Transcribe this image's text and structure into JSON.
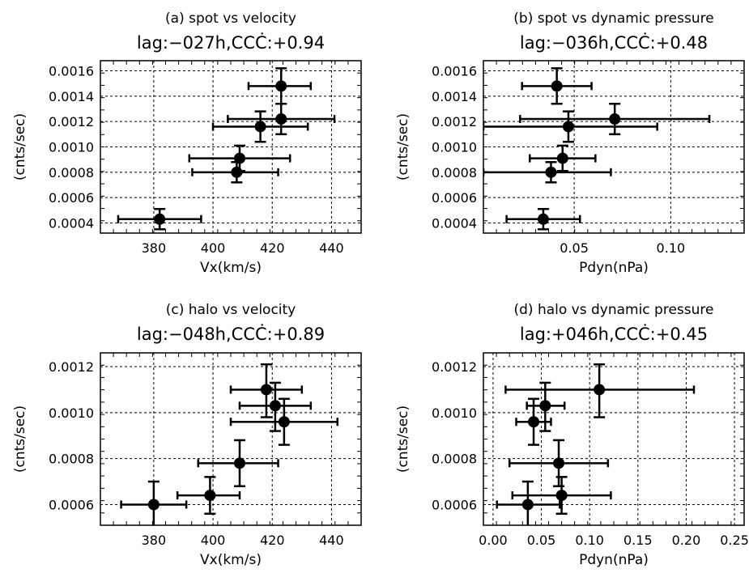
{
  "chart_data": [
    {
      "type": "scatter",
      "title": "(a) spot vs velocity",
      "subtitle": "lag:−027h,CCĊ:+0.94",
      "xlabel": "Vx(km/s)",
      "ylabel": "(cnts/sec)",
      "xlim": [
        362,
        450
      ],
      "ylim": [
        0.00032,
        0.00168
      ],
      "xticks": [
        380,
        400,
        420,
        440
      ],
      "xtick_labels": [
        "380",
        "400",
        "420",
        "440"
      ],
      "yticks": [
        0.0004,
        0.0006,
        0.0008,
        0.001,
        0.0012,
        0.0014,
        0.0016
      ],
      "ytick_labels": [
        "0.0004",
        "0.0006",
        "0.0008",
        "0.0010",
        "0.0012",
        "0.0014",
        "0.0016"
      ],
      "grid": true,
      "points": [
        {
          "x": 382,
          "y": 0.00043,
          "xlo": 368,
          "xhi": 396,
          "ylo": 0.00035,
          "yhi": 0.00051
        },
        {
          "x": 408,
          "y": 0.0008,
          "xlo": 393,
          "xhi": 422,
          "ylo": 0.00072,
          "yhi": 0.00088
        },
        {
          "x": 409,
          "y": 0.00091,
          "xlo": 392,
          "xhi": 426,
          "ylo": 0.00081,
          "yhi": 0.00101
        },
        {
          "x": 416,
          "y": 0.00116,
          "xlo": 400,
          "xhi": 432,
          "ylo": 0.00104,
          "yhi": 0.00128
        },
        {
          "x": 423,
          "y": 0.00122,
          "xlo": 405,
          "xhi": 441,
          "ylo": 0.0011,
          "yhi": 0.00134
        },
        {
          "x": 423,
          "y": 0.00148,
          "xlo": 412,
          "xhi": 433,
          "ylo": 0.00134,
          "yhi": 0.00162
        }
      ]
    },
    {
      "type": "scatter",
      "title": "(b) spot vs dynamic pressure",
      "subtitle": "lag:−036h,CCĊ:+0.48",
      "xlabel": "Pdyn(nPa)",
      "ylabel": "(cnts/sec)",
      "xlim": [
        0.003,
        0.138
      ],
      "ylim": [
        0.00032,
        0.00168
      ],
      "xticks": [
        0.05,
        0.1
      ],
      "xtick_labels": [
        "0.05",
        "0.10"
      ],
      "yticks": [
        0.0004,
        0.0006,
        0.0008,
        0.001,
        0.0012,
        0.0014,
        0.0016
      ],
      "ytick_labels": [
        "0.0004",
        "0.0006",
        "0.0008",
        "0.0010",
        "0.0012",
        "0.0014",
        "0.0016"
      ],
      "grid": true,
      "points": [
        {
          "x": 0.034,
          "y": 0.00043,
          "xlo": 0.015,
          "xhi": 0.053,
          "ylo": 0.00035,
          "yhi": 0.00051
        },
        {
          "x": 0.038,
          "y": 0.0008,
          "xlo": 0.003,
          "xhi": 0.069,
          "ylo": 0.00072,
          "yhi": 0.00088
        },
        {
          "x": 0.044,
          "y": 0.00091,
          "xlo": 0.027,
          "xhi": 0.061,
          "ylo": 0.00081,
          "yhi": 0.00101
        },
        {
          "x": 0.047,
          "y": 0.00116,
          "xlo": 0.003,
          "xhi": 0.093,
          "ylo": 0.00104,
          "yhi": 0.00128
        },
        {
          "x": 0.071,
          "y": 0.00122,
          "xlo": 0.022,
          "xhi": 0.12,
          "ylo": 0.0011,
          "yhi": 0.00134
        },
        {
          "x": 0.041,
          "y": 0.00148,
          "xlo": 0.023,
          "xhi": 0.059,
          "ylo": 0.00134,
          "yhi": 0.00162
        }
      ]
    },
    {
      "type": "scatter",
      "title": "(c) halo vs velocity",
      "subtitle": "lag:−048h,CCĊ:+0.89",
      "xlabel": "Vx(km/s)",
      "ylabel": "(cnts/sec)",
      "xlim": [
        362,
        450
      ],
      "ylim": [
        0.00051,
        0.00126
      ],
      "xticks": [
        380,
        400,
        420,
        440
      ],
      "xtick_labels": [
        "380",
        "400",
        "420",
        "440"
      ],
      "yticks": [
        0.0006,
        0.0008,
        0.001,
        0.0012
      ],
      "ytick_labels": [
        "0.0006",
        "0.0008",
        "0.0010",
        "0.0012"
      ],
      "grid": true,
      "points": [
        {
          "x": 380,
          "y": 0.0006,
          "xlo": 369,
          "xhi": 391,
          "ylo": 0.0005,
          "yhi": 0.0007
        },
        {
          "x": 399,
          "y": 0.00064,
          "xlo": 388,
          "xhi": 409,
          "ylo": 0.00056,
          "yhi": 0.00072
        },
        {
          "x": 409,
          "y": 0.00078,
          "xlo": 395,
          "xhi": 422,
          "ylo": 0.00068,
          "yhi": 0.00088
        },
        {
          "x": 418,
          "y": 0.0011,
          "xlo": 406,
          "xhi": 430,
          "ylo": 0.00098,
          "yhi": 0.00121
        },
        {
          "x": 421,
          "y": 0.00103,
          "xlo": 409,
          "xhi": 433,
          "ylo": 0.00092,
          "yhi": 0.00113
        },
        {
          "x": 424,
          "y": 0.00096,
          "xlo": 406,
          "xhi": 442,
          "ylo": 0.00086,
          "yhi": 0.00106
        }
      ]
    },
    {
      "type": "scatter",
      "title": "(d) halo vs dynamic pressure",
      "subtitle": "lag:+046h,CCĊ:+0.45",
      "xlabel": "Pdyn(nPa)",
      "ylabel": "(cnts/sec)",
      "xlim": [
        -0.01,
        0.26
      ],
      "ylim": [
        0.00051,
        0.00126
      ],
      "xticks": [
        0.0,
        0.05,
        0.1,
        0.15,
        0.2,
        0.25
      ],
      "xtick_labels": [
        "0.00",
        "0.05",
        "0.10",
        "0.15",
        "0.20",
        "0.25"
      ],
      "yticks": [
        0.0006,
        0.0008,
        0.001,
        0.0012
      ],
      "ytick_labels": [
        "0.0006",
        "0.0008",
        "0.0010",
        "0.0012"
      ],
      "grid": true,
      "points": [
        {
          "x": 0.036,
          "y": 0.0006,
          "xlo": 0.004,
          "xhi": 0.069,
          "ylo": 0.0005,
          "yhi": 0.0007
        },
        {
          "x": 0.071,
          "y": 0.00064,
          "xlo": 0.02,
          "xhi": 0.122,
          "ylo": 0.00056,
          "yhi": 0.00072
        },
        {
          "x": 0.068,
          "y": 0.00078,
          "xlo": 0.017,
          "xhi": 0.119,
          "ylo": 0.00068,
          "yhi": 0.00088
        },
        {
          "x": 0.11,
          "y": 0.0011,
          "xlo": 0.013,
          "xhi": 0.208,
          "ylo": 0.00098,
          "yhi": 0.00121
        },
        {
          "x": 0.054,
          "y": 0.00103,
          "xlo": 0.035,
          "xhi": 0.074,
          "ylo": 0.00092,
          "yhi": 0.00113
        },
        {
          "x": 0.042,
          "y": 0.00096,
          "xlo": 0.024,
          "xhi": 0.06,
          "ylo": 0.00086,
          "yhi": 0.00106
        }
      ]
    }
  ]
}
